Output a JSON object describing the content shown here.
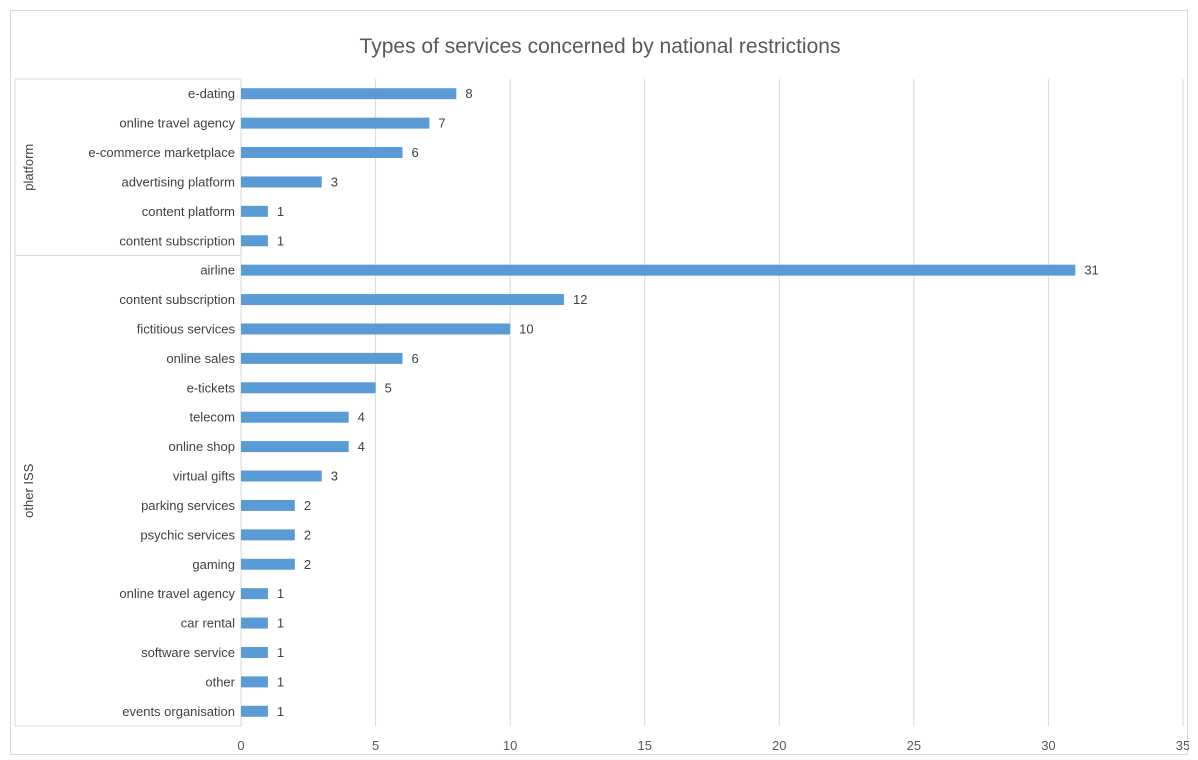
{
  "chart_data": {
    "type": "bar",
    "orientation": "horizontal",
    "title": "Types of services concerned by national restrictions",
    "xlim": [
      0,
      35
    ],
    "xticks": [
      0,
      5,
      10,
      15,
      20,
      25,
      30,
      35
    ],
    "grid": true,
    "legend": "none",
    "bar_color": "#5b9bd5",
    "groups": [
      {
        "name": "platform",
        "categories": [
          "e-dating",
          "online travel agency",
          "e-commerce marketplace",
          "advertising platform",
          "content platform",
          "content subscription"
        ],
        "values": [
          8,
          7,
          6,
          3,
          1,
          1
        ]
      },
      {
        "name": "other ISS",
        "categories": [
          "airline",
          "content subscription",
          "fictitious services",
          "online sales",
          "e-tickets",
          "telecom",
          "online shop",
          "virtual gifts",
          "parking services",
          "psychic services",
          "gaming",
          "online travel agency",
          "car rental",
          "software service",
          "other",
          "events organisation"
        ],
        "values": [
          31,
          12,
          10,
          6,
          5,
          4,
          4,
          3,
          2,
          2,
          2,
          1,
          1,
          1,
          1,
          1
        ]
      }
    ]
  }
}
